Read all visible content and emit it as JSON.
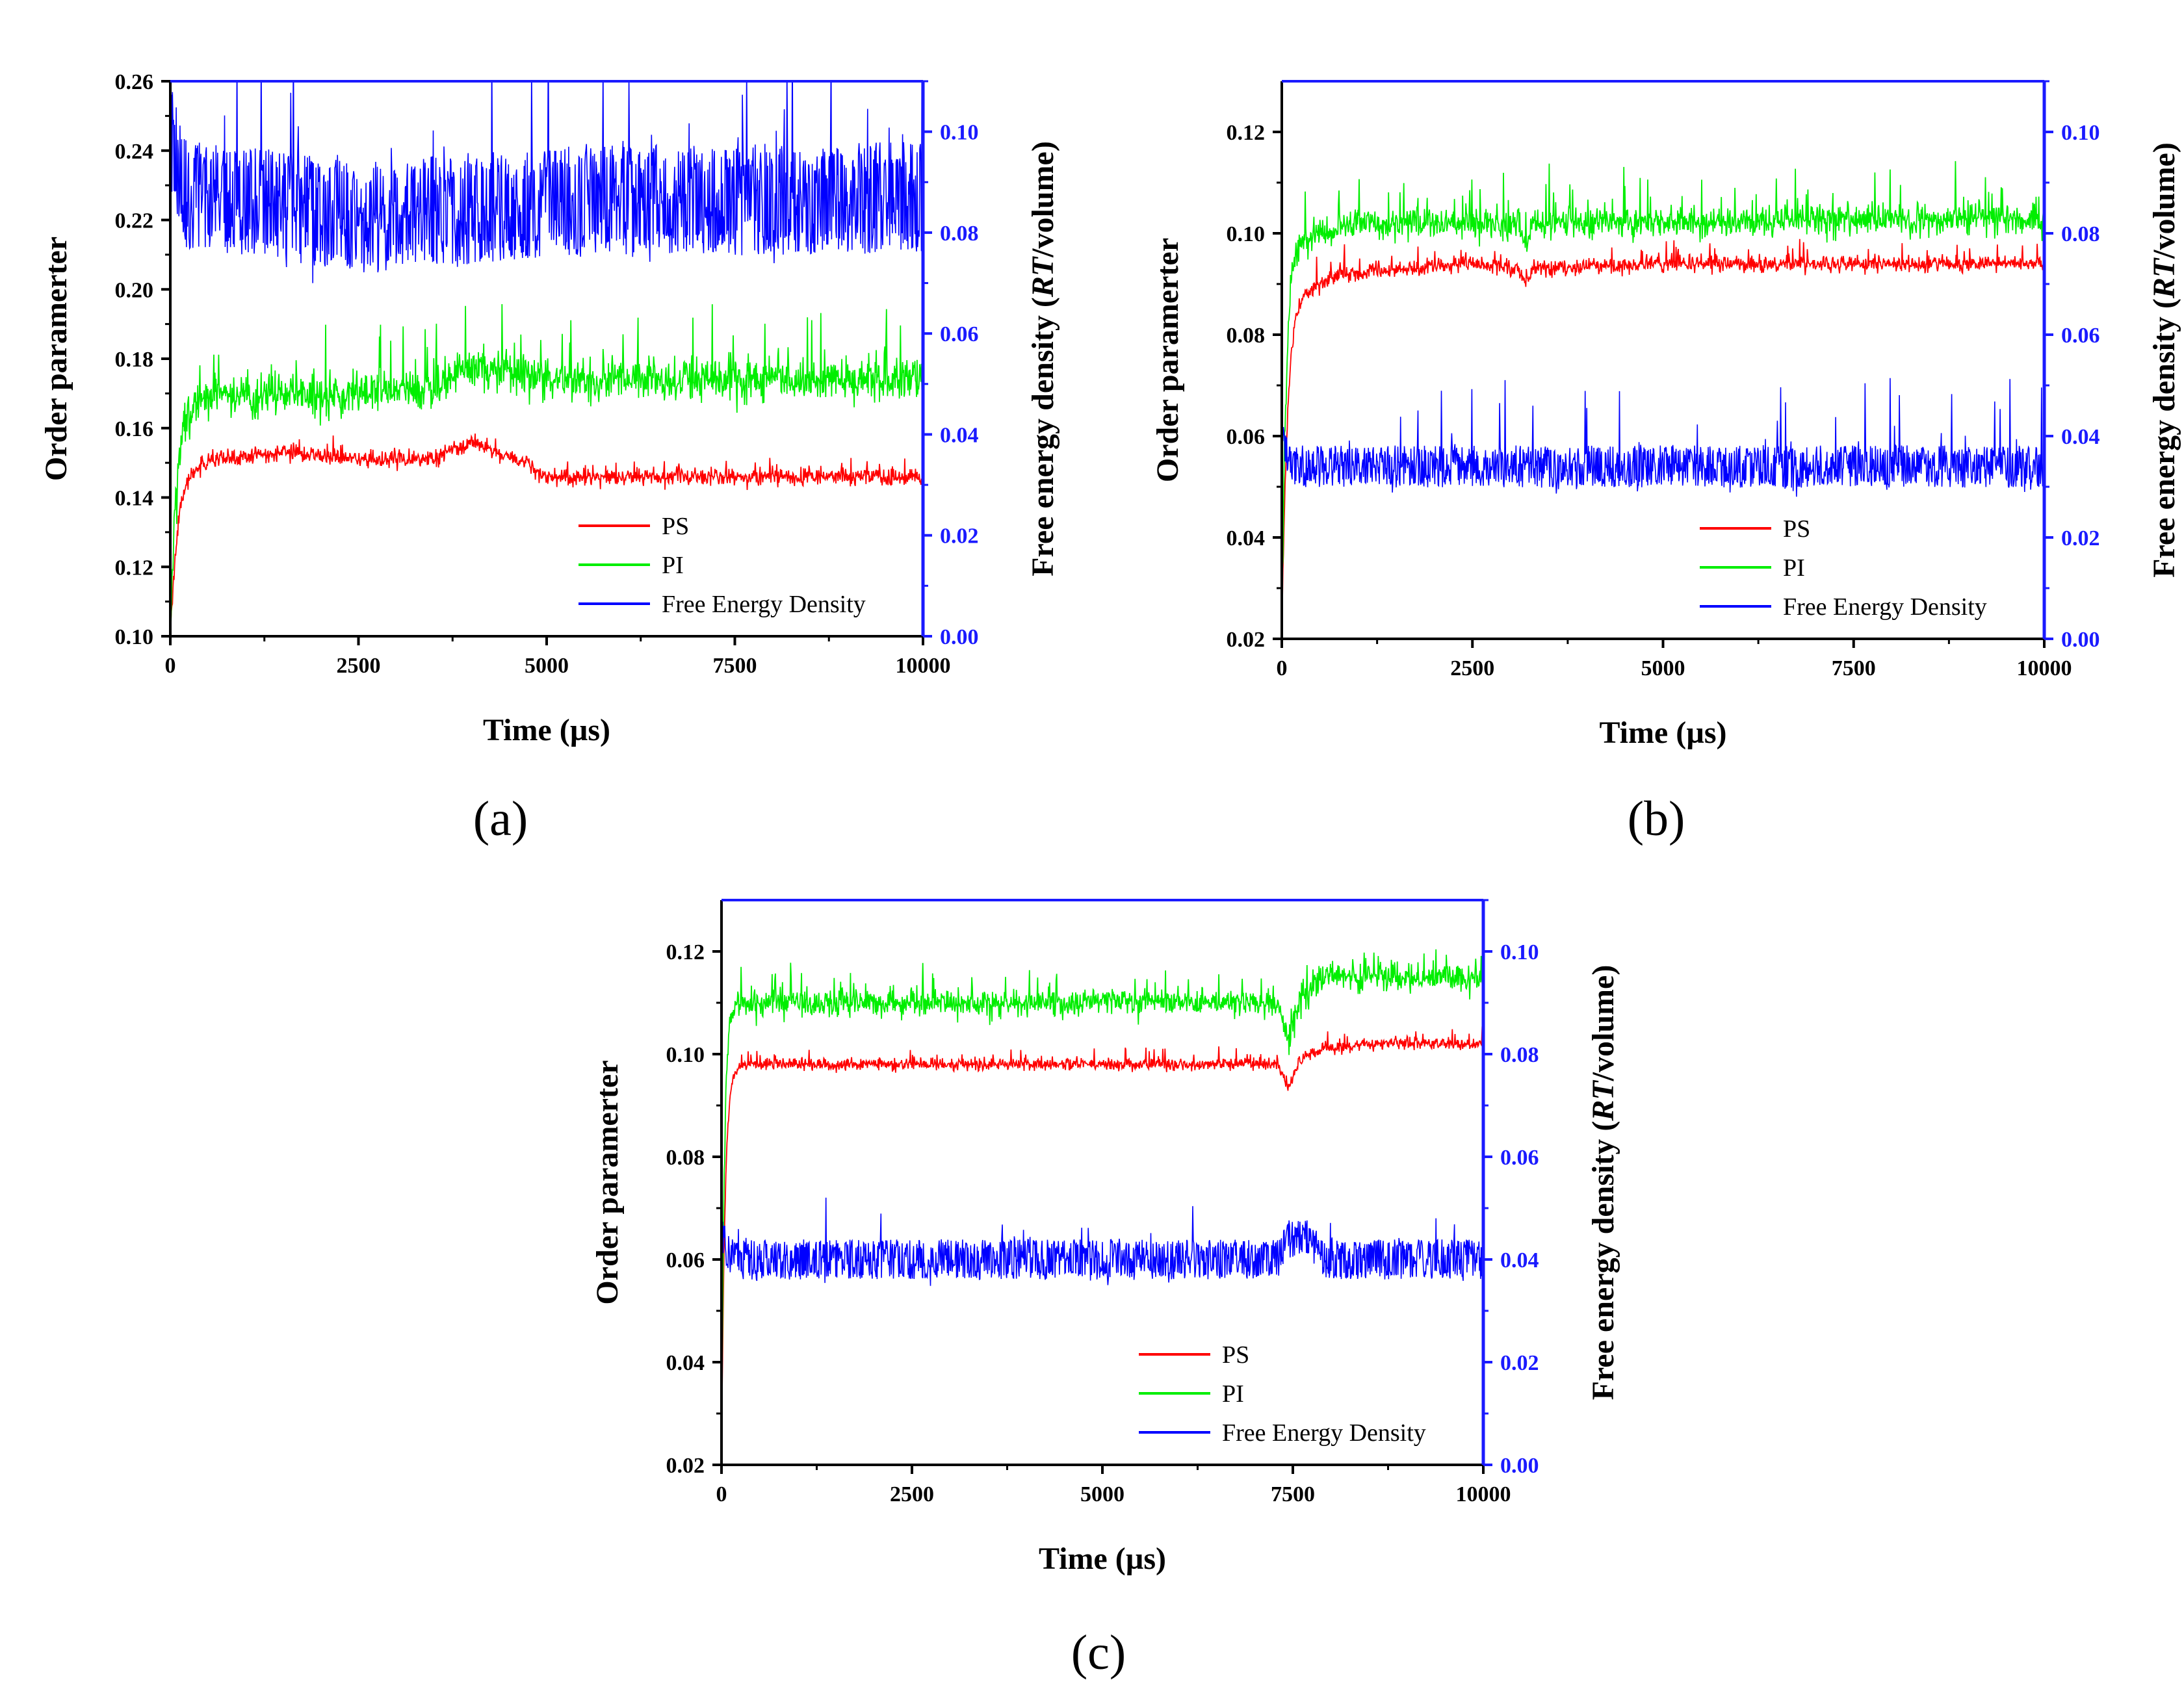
{
  "chart_data": [
    {
      "type": "line",
      "panel": "(a)",
      "xlabel": "Time (µs)",
      "ylabel_left": "Order paramerter",
      "ylabel_right_prefix": "Free energy density (",
      "ylabel_right_italic": "RT",
      "ylabel_right_suffix": "/volume)",
      "xlim": [
        0,
        10000
      ],
      "xticks": [
        "0",
        "2500",
        "5000",
        "7500",
        "10000"
      ],
      "ylim_left": [
        0.1,
        0.26
      ],
      "yticks_left": [
        "0.10",
        "0.12",
        "0.14",
        "0.16",
        "0.18",
        "0.20",
        "0.22",
        "0.24",
        "0.26"
      ],
      "ylim_right": [
        0.0,
        0.11
      ],
      "yticks_right": [
        "0.00",
        "0.02",
        "0.04",
        "0.06",
        "0.08",
        "0.10"
      ],
      "legend": [
        "PS",
        "PI",
        "Free Energy Density"
      ],
      "series": [
        {
          "name": "PS",
          "axis": "left",
          "color": "#ff0000",
          "initial": 0.1,
          "rise_time": 350,
          "noise": 0.0022,
          "spikes": 0.003,
          "levels": [
            [
              300,
              0.15
            ],
            [
              1500,
              0.153
            ],
            [
              2500,
              0.151
            ],
            [
              3500,
              0.151
            ],
            [
              4000,
              0.156
            ],
            [
              4400,
              0.152
            ],
            [
              4800,
              0.15
            ],
            [
              4900,
              0.146
            ],
            [
              10000,
              0.146
            ]
          ]
        },
        {
          "name": "PI",
          "axis": "left",
          "color": "#00ee00",
          "initial": 0.1,
          "rise_time": 300,
          "noise": 0.0055,
          "spikes": 0.012,
          "levels": [
            [
              300,
              0.169
            ],
            [
              2000,
              0.17
            ],
            [
              3500,
              0.171
            ],
            [
              4000,
              0.178
            ],
            [
              4500,
              0.176
            ],
            [
              5000,
              0.174
            ],
            [
              10000,
              0.174
            ]
          ]
        },
        {
          "name": "Free Energy Density",
          "axis": "right",
          "color": "#0000ff",
          "initial": 0.105,
          "noise": 0.0085,
          "spikes": 0.02,
          "levels": [
            [
              0,
              0.1
            ],
            [
              200,
              0.088
            ],
            [
              2500,
              0.083
            ],
            [
              5000,
              0.086
            ],
            [
              10000,
              0.087
            ]
          ]
        }
      ]
    },
    {
      "type": "line",
      "panel": "(b)",
      "xlabel": "Time (µs)",
      "ylabel_left": "Order paramerter",
      "ylabel_right_prefix": "Free energy density (",
      "ylabel_right_italic": "RT",
      "ylabel_right_suffix": "/volume)",
      "xlim": [
        0,
        10000
      ],
      "xticks": [
        "0",
        "2500",
        "5000",
        "7500",
        "10000"
      ],
      "ylim_left": [
        0.02,
        0.13
      ],
      "yticks_left": [
        "0.02",
        "0.04",
        "0.06",
        "0.08",
        "0.10",
        "0.12"
      ],
      "ylim_right": [
        0.0,
        0.11
      ],
      "yticks_right": [
        "0.00",
        "0.02",
        "0.04",
        "0.06",
        "0.08",
        "0.10"
      ],
      "legend": [
        "PS",
        "PI",
        "Free Energy Density"
      ],
      "series": [
        {
          "name": "PS",
          "axis": "left",
          "color": "#ff0000",
          "initial": 0.02,
          "rise_time": 250,
          "noise": 0.0014,
          "spikes": 0.003,
          "levels": [
            [
              300,
              0.089
            ],
            [
              800,
              0.092
            ],
            [
              2500,
              0.094
            ],
            [
              3100,
              0.093
            ],
            [
              3200,
              0.09
            ],
            [
              3300,
              0.093
            ],
            [
              5000,
              0.094
            ],
            [
              10000,
              0.094
            ]
          ]
        },
        {
          "name": "PI",
          "axis": "left",
          "color": "#00ee00",
          "initial": 0.02,
          "rise_time": 200,
          "noise": 0.0028,
          "spikes": 0.006,
          "levels": [
            [
              300,
              0.099
            ],
            [
              1000,
              0.102
            ],
            [
              3100,
              0.102
            ],
            [
              3200,
              0.098
            ],
            [
              3300,
              0.102
            ],
            [
              10000,
              0.103
            ]
          ]
        },
        {
          "name": "Free Energy Density",
          "axis": "right",
          "color": "#0000ff",
          "initial": 0.04,
          "noise": 0.0032,
          "spikes": 0.012,
          "levels": [
            [
              0,
              0.04
            ],
            [
              150,
              0.034
            ],
            [
              10000,
              0.034
            ]
          ]
        }
      ]
    },
    {
      "type": "line",
      "panel": "(c)",
      "xlabel": "Time (µs)",
      "ylabel_left": "Order paramerter",
      "ylabel_right_prefix": "Free energy density (",
      "ylabel_right_italic": "RT",
      "ylabel_right_suffix": "/volume)",
      "xlim": [
        0,
        10000
      ],
      "xticks": [
        "0",
        "2500",
        "5000",
        "7500",
        "10000"
      ],
      "ylim_left": [
        0.02,
        0.13
      ],
      "yticks_left": [
        "0.02",
        "0.04",
        "0.06",
        "0.08",
        "0.10",
        "0.12"
      ],
      "ylim_right": [
        0.0,
        0.11
      ],
      "yticks_right": [
        "0.00",
        "0.02",
        "0.04",
        "0.06",
        "0.08",
        "0.10"
      ],
      "legend": [
        "PS",
        "PI",
        "Free Energy Density"
      ],
      "series": [
        {
          "name": "PS",
          "axis": "left",
          "color": "#ff0000",
          "initial": 0.02,
          "rise_time": 150,
          "noise": 0.0011,
          "spikes": 0.002,
          "levels": [
            [
              200,
              0.098
            ],
            [
              7300,
              0.098
            ],
            [
              7450,
              0.093
            ],
            [
              7600,
              0.099
            ],
            [
              7900,
              0.101
            ],
            [
              8500,
              0.102
            ],
            [
              10000,
              0.102
            ]
          ]
        },
        {
          "name": "PI",
          "axis": "left",
          "color": "#00ee00",
          "initial": 0.02,
          "rise_time": 120,
          "noise": 0.0024,
          "spikes": 0.004,
          "levels": [
            [
              200,
              0.11
            ],
            [
              7300,
              0.11
            ],
            [
              7450,
              0.103
            ],
            [
              7600,
              0.111
            ],
            [
              7900,
              0.115
            ],
            [
              10000,
              0.115
            ]
          ]
        },
        {
          "name": "Free Energy Density",
          "axis": "right",
          "color": "#0000ff",
          "initial": 0.046,
          "noise": 0.003,
          "spikes": 0.006,
          "levels": [
            [
              0,
              0.044
            ],
            [
              150,
              0.04
            ],
            [
              7300,
              0.04
            ],
            [
              7400,
              0.044
            ],
            [
              7700,
              0.044
            ],
            [
              7900,
              0.04
            ],
            [
              10000,
              0.04
            ]
          ]
        }
      ]
    }
  ]
}
